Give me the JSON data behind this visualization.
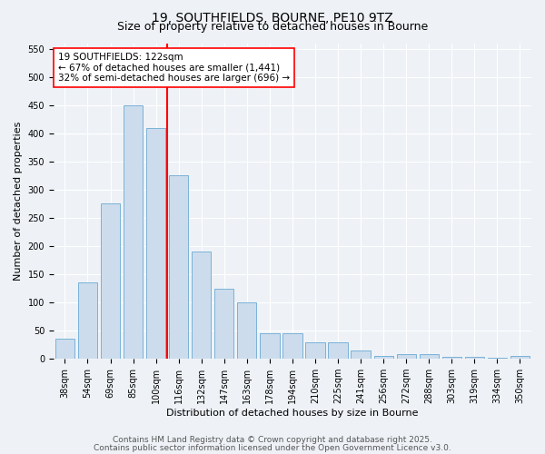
{
  "title1": "19, SOUTHFIELDS, BOURNE, PE10 9TZ",
  "title2": "Size of property relative to detached houses in Bourne",
  "xlabel": "Distribution of detached houses by size in Bourne",
  "ylabel": "Number of detached properties",
  "categories": [
    "38sqm",
    "54sqm",
    "69sqm",
    "85sqm",
    "100sqm",
    "116sqm",
    "132sqm",
    "147sqm",
    "163sqm",
    "178sqm",
    "194sqm",
    "210sqm",
    "225sqm",
    "241sqm",
    "256sqm",
    "272sqm",
    "288sqm",
    "303sqm",
    "319sqm",
    "334sqm",
    "350sqm"
  ],
  "values": [
    35,
    135,
    275,
    450,
    410,
    325,
    190,
    125,
    100,
    45,
    45,
    30,
    30,
    15,
    5,
    8,
    8,
    3,
    3,
    2,
    5
  ],
  "bar_color": "#ccdcec",
  "bar_edge_color": "#6aaad4",
  "vline_color": "red",
  "vline_x_index": 5,
  "annotation_line1": "19 SOUTHFIELDS: 122sqm",
  "annotation_line2": "← 67% of detached houses are smaller (1,441)",
  "annotation_line3": "32% of semi-detached houses are larger (696) →",
  "annotation_box_facecolor": "white",
  "annotation_box_edgecolor": "red",
  "ylim": [
    0,
    560
  ],
  "yticks": [
    0,
    50,
    100,
    150,
    200,
    250,
    300,
    350,
    400,
    450,
    500,
    550
  ],
  "bg_color": "#eef2f7",
  "grid_color": "white",
  "footer1": "Contains HM Land Registry data © Crown copyright and database right 2025.",
  "footer2": "Contains public sector information licensed under the Open Government Licence v3.0.",
  "title1_fontsize": 10,
  "title2_fontsize": 9,
  "axis_label_fontsize": 8,
  "tick_fontsize": 7,
  "annotation_fontsize": 7.5,
  "footer_fontsize": 6.5
}
